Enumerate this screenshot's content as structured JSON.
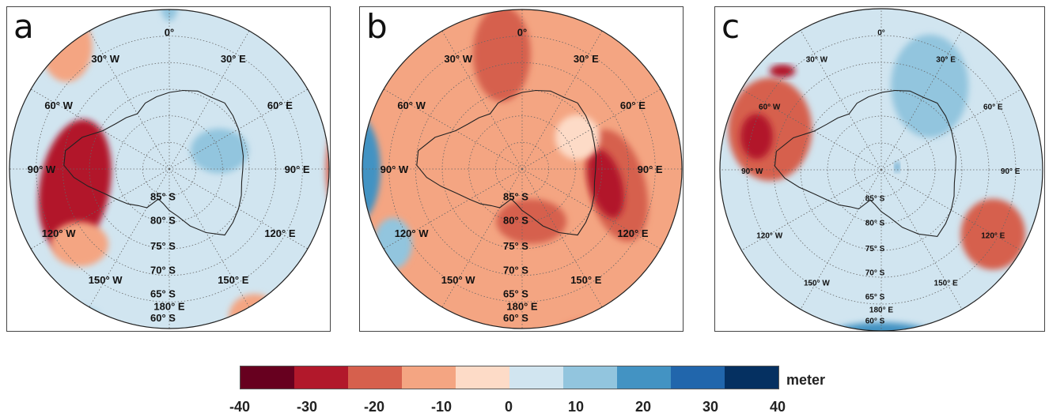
{
  "panels": [
    {
      "id": "a",
      "letter": "a",
      "longitude_labels": [
        {
          "text": "0°",
          "deg": 0
        },
        {
          "text": "30° E",
          "deg": 30
        },
        {
          "text": "60° E",
          "deg": 60
        },
        {
          "text": "90° E",
          "deg": 90
        },
        {
          "text": "120° E",
          "deg": 120
        },
        {
          "text": "150° E",
          "deg": 150
        },
        {
          "text": "180° E",
          "deg": 180
        },
        {
          "text": "150° W",
          "deg": -150
        },
        {
          "text": "120° W",
          "deg": -120
        },
        {
          "text": "90° W",
          "deg": -90
        },
        {
          "text": "60° W",
          "deg": -60
        },
        {
          "text": "30° W",
          "deg": -30
        }
      ],
      "latitude_labels": [
        "85° S",
        "80° S",
        "75° S",
        "70° S",
        "65° S",
        "60° S"
      ],
      "anomaly_blobs": [
        {
          "lon": -100,
          "lat": -72,
          "rx": 0.22,
          "ry": 0.42,
          "rot": 10,
          "value": -25
        },
        {
          "lon": -130,
          "lat": -68,
          "rx": 0.18,
          "ry": 0.14,
          "rot": 0,
          "value": -15
        },
        {
          "lon": 90,
          "lat": -57,
          "rx": 0.12,
          "ry": 0.34,
          "rot": 0,
          "value": -20
        },
        {
          "lon": 150,
          "lat": -58,
          "rx": 0.16,
          "ry": 0.14,
          "rot": 0,
          "value": -10
        },
        {
          "lon": -40,
          "lat": -60,
          "rx": 0.16,
          "ry": 0.22,
          "rot": 0,
          "value": -10
        },
        {
          "lon": -150,
          "lat": -56,
          "rx": 0.16,
          "ry": 0.12,
          "rot": 0,
          "value": 10
        },
        {
          "lon": 70,
          "lat": -80,
          "rx": 0.18,
          "ry": 0.14,
          "rot": 0,
          "value": 10
        },
        {
          "lon": 0,
          "lat": -58,
          "rx": 0.06,
          "ry": 0.14,
          "rot": 0,
          "value": 10
        },
        {
          "lon": 175,
          "lat": -56,
          "rx": 0.12,
          "ry": 0.08,
          "rot": 0,
          "value": 10
        }
      ]
    },
    {
      "id": "b",
      "letter": "b",
      "longitude_labels": [
        {
          "text": "0°",
          "deg": 0
        },
        {
          "text": "30° E",
          "deg": 30
        },
        {
          "text": "60° E",
          "deg": 60
        },
        {
          "text": "90° E",
          "deg": 90
        },
        {
          "text": "120° E",
          "deg": 120
        },
        {
          "text": "150° E",
          "deg": 150
        },
        {
          "text": "180° E",
          "deg": 180
        },
        {
          "text": "150° W",
          "deg": -150
        },
        {
          "text": "120° W",
          "deg": -120
        },
        {
          "text": "90° W",
          "deg": -90
        },
        {
          "text": "60° W",
          "deg": -60
        },
        {
          "text": "30° W",
          "deg": -30
        }
      ],
      "latitude_labels": [
        "85° S",
        "80° S",
        "75° S",
        "70° S",
        "65° S",
        "60° S"
      ],
      "anomaly_blobs": [
        {
          "lon": -90,
          "lat": -58,
          "rx": 0.18,
          "ry": 0.36,
          "rot": 0,
          "value": 20
        },
        {
          "lon": -92,
          "lat": -56,
          "rx": 0.08,
          "ry": 0.12,
          "rot": 0,
          "value": 35
        },
        {
          "lon": -120,
          "lat": -62,
          "rx": 0.12,
          "ry": 0.16,
          "rot": 0,
          "value": 10
        },
        {
          "lon": 100,
          "lat": -72,
          "rx": 0.18,
          "ry": 0.36,
          "rot": -15,
          "value": -20
        },
        {
          "lon": 100,
          "lat": -74,
          "rx": 0.1,
          "ry": 0.22,
          "rot": -15,
          "value": -30
        },
        {
          "lon": -10,
          "lat": -68,
          "rx": 0.18,
          "ry": 0.3,
          "rot": 0,
          "value": -20
        },
        {
          "lon": 170,
          "lat": -80,
          "rx": 0.22,
          "ry": 0.14,
          "rot": 0,
          "value": -20
        },
        {
          "lon": 150,
          "lat": -55,
          "rx": 0.34,
          "ry": 0.08,
          "rot": 0,
          "value": -20
        },
        {
          "lon": 60,
          "lat": -78,
          "rx": 0.14,
          "ry": 0.14,
          "rot": 0,
          "value": -5
        },
        {
          "lon": 60,
          "lat": -55,
          "rx": 0.1,
          "ry": 0.14,
          "rot": 0,
          "value": 10
        }
      ]
    },
    {
      "id": "c",
      "letter": "c",
      "longitude_labels": [
        {
          "text": "0°",
          "deg": 0
        },
        {
          "text": "30° E",
          "deg": 30
        },
        {
          "text": "60° E",
          "deg": 60
        },
        {
          "text": "90° E",
          "deg": 90
        },
        {
          "text": "120° E",
          "deg": 120
        },
        {
          "text": "150° E",
          "deg": 150
        },
        {
          "text": "180° E",
          "deg": 180
        },
        {
          "text": "150° W",
          "deg": -150
        },
        {
          "text": "120° W",
          "deg": -120
        },
        {
          "text": "90° W",
          "deg": -90
        },
        {
          "text": "60° W",
          "deg": -60
        },
        {
          "text": "30° W",
          "deg": -30
        }
      ],
      "latitude_labels": [
        "85° S",
        "80° S",
        "75° S",
        "70° S",
        "65° S",
        "60° S"
      ],
      "anomaly_blobs": [
        {
          "lon": -70,
          "lat": -68,
          "rx": 0.26,
          "ry": 0.32,
          "rot": 0,
          "value": -20
        },
        {
          "lon": -75,
          "lat": -66,
          "rx": 0.1,
          "ry": 0.14,
          "rot": 0,
          "value": -30
        },
        {
          "lon": -45,
          "lat": -64,
          "rx": 0.08,
          "ry": 0.04,
          "rot": 0,
          "value": -30
        },
        {
          "lon": 120,
          "lat": -66,
          "rx": 0.2,
          "ry": 0.22,
          "rot": 0,
          "value": -20
        },
        {
          "lon": 120,
          "lat": -58,
          "rx": 0.04,
          "ry": 0.05,
          "rot": 0,
          "value": -30
        },
        {
          "lon": 180,
          "lat": -58,
          "rx": 0.38,
          "ry": 0.12,
          "rot": 0,
          "value": 20
        },
        {
          "lon": 180,
          "lat": -56,
          "rx": 0.2,
          "ry": 0.06,
          "rot": 0,
          "value": 30
        },
        {
          "lon": 30,
          "lat": -72,
          "rx": 0.24,
          "ry": 0.32,
          "rot": 0,
          "value": 10
        },
        {
          "lon": 80,
          "lat": -87,
          "rx": 0.015,
          "ry": 0.03,
          "rot": 0,
          "value": 20
        },
        {
          "lon": 60,
          "lat": -55,
          "rx": 0.08,
          "ry": 0.2,
          "rot": 0,
          "value": 20
        }
      ]
    }
  ],
  "colorbar": {
    "unit": "meter",
    "ticks": [
      "-40",
      "-30",
      "-20",
      "-10",
      "0",
      "10",
      "20",
      "30",
      "40"
    ],
    "colors": [
      "#67001f",
      "#b2182b",
      "#d6604d",
      "#f4a582",
      "#fddbc7",
      "#d1e5f0",
      "#92c5de",
      "#4393c3",
      "#2166ac",
      "#053061"
    ]
  }
}
